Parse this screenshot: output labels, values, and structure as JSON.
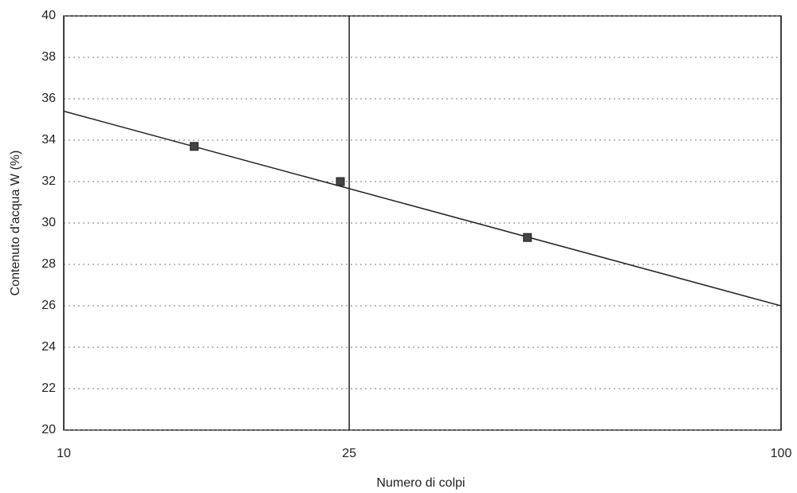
{
  "chart_data": {
    "type": "scatter",
    "x_label": "Numero di colpi",
    "y_label": "Contenuto d'acqua W (%)",
    "x": [
      15.2,
      24.3,
      44.3
    ],
    "values": [
      33.7,
      32.0,
      29.3
    ],
    "color": "#444444",
    "trendline": {
      "x": [
        10,
        100
      ],
      "values": [
        35.4,
        26.0
      ],
      "color": "#222222"
    },
    "x_log": true,
    "xlim": [
      10,
      100
    ],
    "xticks": [
      10,
      25,
      100
    ],
    "ylim": [
      20,
      40
    ],
    "yticks": [
      20,
      22,
      24,
      26,
      28,
      30,
      32,
      34,
      36,
      38,
      40
    ],
    "grid": true
  }
}
